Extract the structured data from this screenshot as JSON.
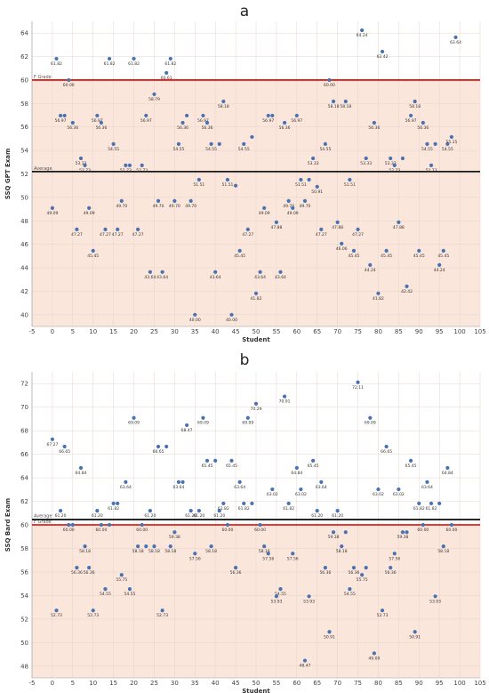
{
  "chart_data": [
    {
      "type": "scatter",
      "panel": "a",
      "xlabel": "Student",
      "ylabel": "SSQ GPT Exam",
      "xlim": [
        -5,
        105
      ],
      "ylim": [
        39,
        65
      ],
      "x_ticks": [
        "-5",
        "0",
        "5",
        "10",
        "15",
        "20",
        "25",
        "30",
        "35",
        "40",
        "45",
        "50",
        "55",
        "60",
        "65",
        "70",
        "75",
        "80",
        "85",
        "90",
        "95",
        "100",
        "105"
      ],
      "y_ticks": [
        "40",
        "42",
        "44",
        "46",
        "48",
        "50",
        "52",
        "54",
        "56",
        "58",
        "60",
        "62",
        "64"
      ],
      "reference_lines": [
        {
          "label": "F Grade",
          "value": 60,
          "color": "#e0201b"
        },
        {
          "label": "Average",
          "value": 52.2,
          "color": "#1a1a1a"
        }
      ],
      "points": [
        {
          "x": 0,
          "y": 49.09,
          "label": "49.09"
        },
        {
          "x": 1,
          "y": 61.82,
          "label": "61.82"
        },
        {
          "x": 2,
          "y": 56.97,
          "label": "56.97"
        },
        {
          "x": 3,
          "y": 56.97,
          "label": ""
        },
        {
          "x": 4,
          "y": 60.0,
          "label": "60.00"
        },
        {
          "x": 5,
          "y": 56.36,
          "label": "56.36"
        },
        {
          "x": 6,
          "y": 47.27,
          "label": "47.27"
        },
        {
          "x": 7,
          "y": 53.33,
          "label": "53.33"
        },
        {
          "x": 8,
          "y": 52.73,
          "label": "52.73"
        },
        {
          "x": 9,
          "y": 49.09,
          "label": "49.09"
        },
        {
          "x": 10,
          "y": 45.45,
          "label": "45.45"
        },
        {
          "x": 11,
          "y": 56.97,
          "label": "56.97"
        },
        {
          "x": 12,
          "y": 56.36,
          "label": "56.36"
        },
        {
          "x": 13,
          "y": 47.27,
          "label": "47.27"
        },
        {
          "x": 14,
          "y": 61.82,
          "label": "61.82"
        },
        {
          "x": 15,
          "y": 54.55,
          "label": "54.55"
        },
        {
          "x": 16,
          "y": 47.27,
          "label": "47.27"
        },
        {
          "x": 17,
          "y": 49.7,
          "label": "49.70"
        },
        {
          "x": 18,
          "y": 52.73,
          "label": "52.73"
        },
        {
          "x": 19,
          "y": 52.73,
          "label": ""
        },
        {
          "x": 20,
          "y": 61.82,
          "label": "61.82"
        },
        {
          "x": 21,
          "y": 47.27,
          "label": "47.27"
        },
        {
          "x": 22,
          "y": 52.73,
          "label": "52.73"
        },
        {
          "x": 23,
          "y": 56.97,
          "label": "56.97"
        },
        {
          "x": 24,
          "y": 43.64,
          "label": "43.64"
        },
        {
          "x": 25,
          "y": 58.79,
          "label": "58.79"
        },
        {
          "x": 26,
          "y": 49.7,
          "label": "49.70"
        },
        {
          "x": 27,
          "y": 43.64,
          "label": "43.64"
        },
        {
          "x": 28,
          "y": 60.61,
          "label": "60.61"
        },
        {
          "x": 29,
          "y": 61.82,
          "label": "61.82"
        },
        {
          "x": 30,
          "y": 49.7,
          "label": "49.70"
        },
        {
          "x": 31,
          "y": 54.55,
          "label": "54.55"
        },
        {
          "x": 32,
          "y": 56.36,
          "label": "56.36"
        },
        {
          "x": 33,
          "y": 56.97,
          "label": ""
        },
        {
          "x": 34,
          "y": 49.7,
          "label": "49.70"
        },
        {
          "x": 35,
          "y": 40.0,
          "label": "40.00"
        },
        {
          "x": 36,
          "y": 51.51,
          "label": "51.51"
        },
        {
          "x": 37,
          "y": 56.97,
          "label": "56.97"
        },
        {
          "x": 38,
          "y": 56.36,
          "label": "56.36"
        },
        {
          "x": 39,
          "y": 54.55,
          "label": "54.55"
        },
        {
          "x": 40,
          "y": 43.64,
          "label": "43.64"
        },
        {
          "x": 41,
          "y": 54.55,
          "label": ""
        },
        {
          "x": 42,
          "y": 58.18,
          "label": "58.18"
        },
        {
          "x": 43,
          "y": 51.51,
          "label": "51.51"
        },
        {
          "x": 44,
          "y": 40.0,
          "label": "40.00"
        },
        {
          "x": 45,
          "y": 51.0,
          "label": ""
        },
        {
          "x": 46,
          "y": 45.45,
          "label": "45.45"
        },
        {
          "x": 47,
          "y": 54.55,
          "label": "54.55"
        },
        {
          "x": 48,
          "y": 47.27,
          "label": "47.27"
        },
        {
          "x": 49,
          "y": 55.15,
          "label": ""
        },
        {
          "x": 50,
          "y": 41.82,
          "label": "41.82"
        },
        {
          "x": 51,
          "y": 43.64,
          "label": "43.64"
        },
        {
          "x": 52,
          "y": 49.09,
          "label": "49.09"
        },
        {
          "x": 53,
          "y": 56.97,
          "label": "56.97"
        },
        {
          "x": 54,
          "y": 56.97,
          "label": ""
        },
        {
          "x": 55,
          "y": 47.88,
          "label": "47.88"
        },
        {
          "x": 56,
          "y": 43.64,
          "label": "43.64"
        },
        {
          "x": 57,
          "y": 56.36,
          "label": "56.36"
        },
        {
          "x": 58,
          "y": 49.7,
          "label": "49.70"
        },
        {
          "x": 59,
          "y": 49.09,
          "label": "49.09"
        },
        {
          "x": 60,
          "y": 56.97,
          "label": "56.97"
        },
        {
          "x": 61,
          "y": 51.51,
          "label": "51.51"
        },
        {
          "x": 62,
          "y": 49.7,
          "label": "49.70"
        },
        {
          "x": 63,
          "y": 51.51,
          "label": ""
        },
        {
          "x": 64,
          "y": 53.33,
          "label": "53.33"
        },
        {
          "x": 65,
          "y": 50.91,
          "label": "50.91"
        },
        {
          "x": 66,
          "y": 47.27,
          "label": "47.27"
        },
        {
          "x": 67,
          "y": 54.55,
          "label": "54.55"
        },
        {
          "x": 68,
          "y": 60.0,
          "label": "60.00"
        },
        {
          "x": 69,
          "y": 58.18,
          "label": "58.18"
        },
        {
          "x": 70,
          "y": 47.88,
          "label": "47.88"
        },
        {
          "x": 71,
          "y": 46.06,
          "label": "46.06"
        },
        {
          "x": 72,
          "y": 58.18,
          "label": "58.18"
        },
        {
          "x": 73,
          "y": 51.51,
          "label": "51.51"
        },
        {
          "x": 74,
          "y": 45.45,
          "label": "45.45"
        },
        {
          "x": 75,
          "y": 47.27,
          "label": "47.27"
        },
        {
          "x": 76,
          "y": 64.24,
          "label": "64.24"
        },
        {
          "x": 77,
          "y": 53.33,
          "label": "53.33"
        },
        {
          "x": 78,
          "y": 44.24,
          "label": "44.24"
        },
        {
          "x": 79,
          "y": 56.36,
          "label": "56.36"
        },
        {
          "x": 80,
          "y": 41.82,
          "label": "41.82"
        },
        {
          "x": 81,
          "y": 62.42,
          "label": "62.42"
        },
        {
          "x": 82,
          "y": 45.45,
          "label": "45.45"
        },
        {
          "x": 83,
          "y": 53.33,
          "label": "53.33"
        },
        {
          "x": 84,
          "y": 52.73,
          "label": "52.73"
        },
        {
          "x": 85,
          "y": 47.88,
          "label": "47.88"
        },
        {
          "x": 86,
          "y": 53.33,
          "label": ""
        },
        {
          "x": 87,
          "y": 42.42,
          "label": "42.42"
        },
        {
          "x": 88,
          "y": 56.97,
          "label": "56.97"
        },
        {
          "x": 89,
          "y": 58.18,
          "label": "58.18"
        },
        {
          "x": 90,
          "y": 45.45,
          "label": "45.45"
        },
        {
          "x": 91,
          "y": 56.36,
          "label": "56.36"
        },
        {
          "x": 92,
          "y": 54.55,
          "label": "54.55"
        },
        {
          "x": 93,
          "y": 52.73,
          "label": "52.73"
        },
        {
          "x": 94,
          "y": 54.55,
          "label": ""
        },
        {
          "x": 95,
          "y": 44.24,
          "label": "44.24"
        },
        {
          "x": 96,
          "y": 45.45,
          "label": "45.45"
        },
        {
          "x": 97,
          "y": 54.55,
          "label": "54.55"
        },
        {
          "x": 98,
          "y": 55.15,
          "label": "55.15"
        },
        {
          "x": 99,
          "y": 63.64,
          "label": "63.64"
        }
      ]
    },
    {
      "type": "scatter",
      "panel": "b",
      "xlabel": "Student",
      "ylabel": "SSQ Bard Exam",
      "xlim": [
        -5,
        105
      ],
      "ylim": [
        47,
        73
      ],
      "x_ticks": [
        "-5",
        "0",
        "5",
        "10",
        "15",
        "20",
        "25",
        "30",
        "35",
        "40",
        "45",
        "50",
        "55",
        "60",
        "65",
        "70",
        "75",
        "80",
        "85",
        "90",
        "95",
        "100",
        "105"
      ],
      "y_ticks": [
        "48",
        "50",
        "52",
        "54",
        "56",
        "58",
        "60",
        "62",
        "64",
        "66",
        "68",
        "70",
        "72"
      ],
      "reference_lines": [
        {
          "label": "F Grade",
          "value": 60,
          "color": "#e0201b"
        },
        {
          "label": "Average",
          "value": 60.45,
          "color": "#1a1a1a"
        }
      ],
      "points": [
        {
          "x": 0,
          "y": 67.27,
          "label": "67.27"
        },
        {
          "x": 1,
          "y": 52.73,
          "label": "52.73"
        },
        {
          "x": 2,
          "y": 61.2,
          "label": "61.20"
        },
        {
          "x": 3,
          "y": 66.65,
          "label": "66.65"
        },
        {
          "x": 4,
          "y": 60.0,
          "label": "60.00"
        },
        {
          "x": 5,
          "y": 60.0,
          "label": ""
        },
        {
          "x": 6,
          "y": 56.36,
          "label": "56.36"
        },
        {
          "x": 7,
          "y": 64.84,
          "label": "64.84"
        },
        {
          "x": 8,
          "y": 58.18,
          "label": "58.18"
        },
        {
          "x": 9,
          "y": 56.36,
          "label": "56.36"
        },
        {
          "x": 10,
          "y": 52.73,
          "label": "52.73"
        },
        {
          "x": 11,
          "y": 61.2,
          "label": "61.20"
        },
        {
          "x": 12,
          "y": 60.0,
          "label": "60.00"
        },
        {
          "x": 13,
          "y": 54.55,
          "label": "54.55"
        },
        {
          "x": 14,
          "y": 60.0,
          "label": ""
        },
        {
          "x": 15,
          "y": 61.82,
          "label": "61.82"
        },
        {
          "x": 16,
          "y": 61.82,
          "label": ""
        },
        {
          "x": 17,
          "y": 55.75,
          "label": "55.75"
        },
        {
          "x": 18,
          "y": 63.64,
          "label": "63.64"
        },
        {
          "x": 19,
          "y": 54.55,
          "label": "54.55"
        },
        {
          "x": 20,
          "y": 69.09,
          "label": "69.09"
        },
        {
          "x": 21,
          "y": 58.18,
          "label": "58.18"
        },
        {
          "x": 22,
          "y": 60.0,
          "label": "60.00"
        },
        {
          "x": 23,
          "y": 58.18,
          "label": ""
        },
        {
          "x": 24,
          "y": 61.2,
          "label": "61.20"
        },
        {
          "x": 25,
          "y": 58.18,
          "label": "58.18"
        },
        {
          "x": 26,
          "y": 66.65,
          "label": "66.65"
        },
        {
          "x": 27,
          "y": 52.73,
          "label": "52.73"
        },
        {
          "x": 28,
          "y": 66.65,
          "label": ""
        },
        {
          "x": 29,
          "y": 58.18,
          "label": "58.18"
        },
        {
          "x": 30,
          "y": 59.38,
          "label": "59.38"
        },
        {
          "x": 31,
          "y": 63.64,
          "label": "63.64"
        },
        {
          "x": 32,
          "y": 63.64,
          "label": ""
        },
        {
          "x": 33,
          "y": 68.47,
          "label": "68.47"
        },
        {
          "x": 34,
          "y": 61.2,
          "label": "61.20"
        },
        {
          "x": 35,
          "y": 57.56,
          "label": "57.56"
        },
        {
          "x": 36,
          "y": 61.2,
          "label": "61.20"
        },
        {
          "x": 37,
          "y": 69.09,
          "label": "69.09"
        },
        {
          "x": 38,
          "y": 65.45,
          "label": "65.45"
        },
        {
          "x": 39,
          "y": 58.18,
          "label": "58.18"
        },
        {
          "x": 40,
          "y": 65.45,
          "label": ""
        },
        {
          "x": 41,
          "y": 61.2,
          "label": "61.20"
        },
        {
          "x": 42,
          "y": 61.82,
          "label": "61.82"
        },
        {
          "x": 43,
          "y": 60.0,
          "label": "60.00"
        },
        {
          "x": 44,
          "y": 65.45,
          "label": "65.45"
        },
        {
          "x": 45,
          "y": 56.36,
          "label": "56.36"
        },
        {
          "x": 46,
          "y": 63.64,
          "label": "63.64"
        },
        {
          "x": 47,
          "y": 61.82,
          "label": "61.82"
        },
        {
          "x": 48,
          "y": 69.09,
          "label": "69.09"
        },
        {
          "x": 49,
          "y": 61.82,
          "label": ""
        },
        {
          "x": 50,
          "y": 70.29,
          "label": "70.29"
        },
        {
          "x": 51,
          "y": 60.0,
          "label": "60.00"
        },
        {
          "x": 52,
          "y": 58.18,
          "label": "58.18"
        },
        {
          "x": 53,
          "y": 57.56,
          "label": "57.56"
        },
        {
          "x": 54,
          "y": 63.02,
          "label": "63.02"
        },
        {
          "x": 55,
          "y": 53.93,
          "label": "53.93"
        },
        {
          "x": 56,
          "y": 54.55,
          "label": "54.55"
        },
        {
          "x": 57,
          "y": 70.91,
          "label": "70.91"
        },
        {
          "x": 58,
          "y": 61.82,
          "label": "61.82"
        },
        {
          "x": 59,
          "y": 57.56,
          "label": "57.56"
        },
        {
          "x": 60,
          "y": 64.84,
          "label": "64.84"
        },
        {
          "x": 61,
          "y": 63.02,
          "label": "63.02"
        },
        {
          "x": 62,
          "y": 48.47,
          "label": "48.47"
        },
        {
          "x": 63,
          "y": 53.93,
          "label": "53.93"
        },
        {
          "x": 64,
          "y": 65.45,
          "label": "65.45"
        },
        {
          "x": 65,
          "y": 61.2,
          "label": "61.20"
        },
        {
          "x": 66,
          "y": 63.64,
          "label": "63.64"
        },
        {
          "x": 67,
          "y": 56.36,
          "label": "56.36"
        },
        {
          "x": 68,
          "y": 50.91,
          "label": "50.91"
        },
        {
          "x": 69,
          "y": 59.38,
          "label": "59.38"
        },
        {
          "x": 70,
          "y": 61.2,
          "label": "61.20"
        },
        {
          "x": 71,
          "y": 58.18,
          "label": "58.18"
        },
        {
          "x": 72,
          "y": 59.38,
          "label": ""
        },
        {
          "x": 73,
          "y": 54.55,
          "label": "54.55"
        },
        {
          "x": 74,
          "y": 56.36,
          "label": "56.36"
        },
        {
          "x": 75,
          "y": 72.11,
          "label": "72.11"
        },
        {
          "x": 76,
          "y": 55.75,
          "label": "55.75"
        },
        {
          "x": 77,
          "y": 56.36,
          "label": ""
        },
        {
          "x": 78,
          "y": 69.09,
          "label": "69.09"
        },
        {
          "x": 79,
          "y": 49.09,
          "label": "49.09"
        },
        {
          "x": 80,
          "y": 63.02,
          "label": "63.02"
        },
        {
          "x": 81,
          "y": 52.73,
          "label": "52.73"
        },
        {
          "x": 82,
          "y": 66.65,
          "label": "66.65"
        },
        {
          "x": 83,
          "y": 56.36,
          "label": "56.36"
        },
        {
          "x": 84,
          "y": 57.56,
          "label": "57.56"
        },
        {
          "x": 85,
          "y": 63.02,
          "label": "63.02"
        },
        {
          "x": 86,
          "y": 59.38,
          "label": "59.38"
        },
        {
          "x": 87,
          "y": 59.38,
          "label": ""
        },
        {
          "x": 88,
          "y": 65.45,
          "label": "65.45"
        },
        {
          "x": 89,
          "y": 50.91,
          "label": "50.91"
        },
        {
          "x": 90,
          "y": 61.82,
          "label": "61.82"
        },
        {
          "x": 91,
          "y": 60.0,
          "label": "60.00"
        },
        {
          "x": 92,
          "y": 63.64,
          "label": "63.64"
        },
        {
          "x": 93,
          "y": 61.82,
          "label": "61.82"
        },
        {
          "x": 94,
          "y": 53.93,
          "label": "53.93"
        },
        {
          "x": 95,
          "y": 61.82,
          "label": ""
        },
        {
          "x": 96,
          "y": 58.18,
          "label": "58.18"
        },
        {
          "x": 97,
          "y": 64.84,
          "label": "64.84"
        },
        {
          "x": 98,
          "y": 60.0,
          "label": "60.00"
        }
      ]
    }
  ]
}
